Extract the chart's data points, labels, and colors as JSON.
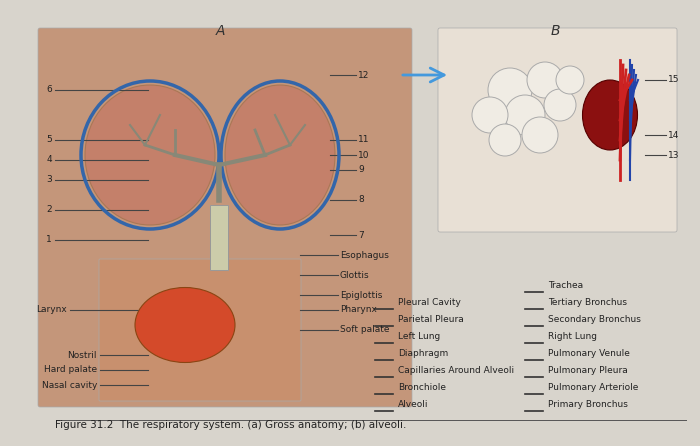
{
  "title": "Figure 31.2  The respiratory system. (a) Gross anatomy; (b) alveoli.",
  "bg_color": "#d8d4cc",
  "left_labels": [
    "Nasal cavity",
    "Hard palate",
    "Nostril",
    "Larynx",
    "1",
    "2",
    "3",
    "4",
    "5",
    "6"
  ],
  "right_labels_upper": [
    "Soft palate",
    "Pharynx",
    "Epiglottis",
    "Glottis",
    "Esophagus"
  ],
  "right_labels_lower": [
    "7",
    "8",
    "9",
    "10",
    "11",
    "12"
  ],
  "right_labels_b": [
    "13",
    "14",
    "15"
  ],
  "legend_col1": [
    "Alveoli",
    "Bronchiole",
    "Capillaries Around Alveoli",
    "Diaphragm",
    "Left Lung",
    "Parietal Pleura",
    "Pleural Cavity"
  ],
  "legend_col2": [
    "Primary Bronchus",
    "Pulmonary Arteriole",
    "Pulmonary Pleura",
    "Pulmonary Venule",
    "Right Lung",
    "Secondary Bronchus",
    "Tertiary Bronchus",
    "Trachea"
  ],
  "label_A": "A",
  "label_B": "B",
  "fig_width": 7.0,
  "fig_height": 4.46,
  "dpi": 100
}
